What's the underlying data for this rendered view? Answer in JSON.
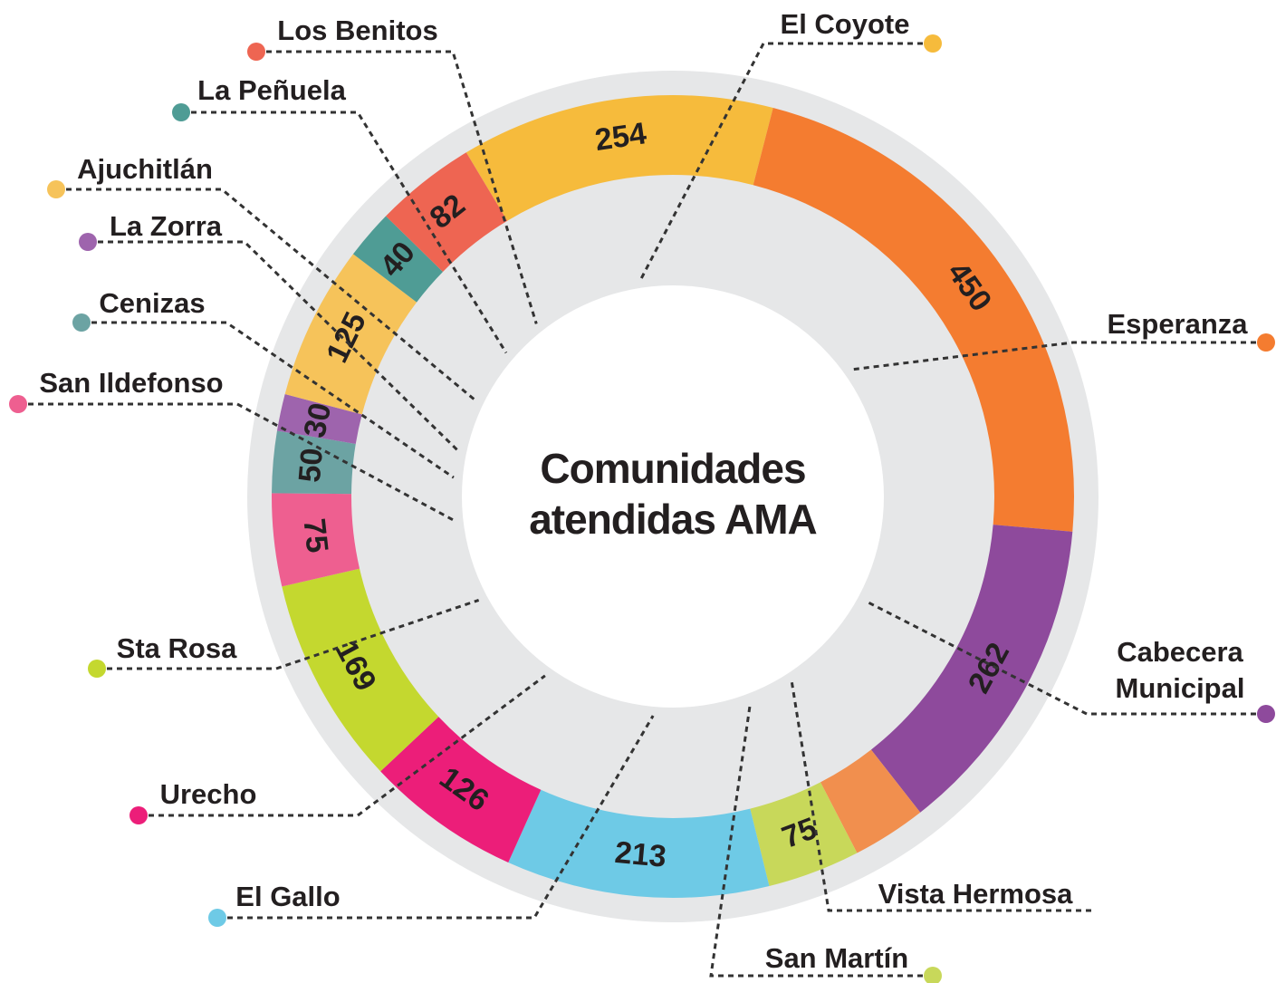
{
  "chart_data": {
    "type": "donut",
    "title": [
      "Comunidades",
      "atendidas AMA"
    ],
    "categories": [
      "El Coyote",
      "Esperanza",
      "Cabecera Municipal",
      "Vista Hermosa",
      "San Martín",
      "El Gallo",
      "Urecho",
      "Sta Rosa",
      "San Ildefonso",
      "Cenizas",
      "La Zorra",
      "Ajuchitlán",
      "La Peñuela",
      "Los Benitos"
    ],
    "values": [
      254,
      450,
      262,
      60,
      75,
      213,
      126,
      169,
      75,
      50,
      30,
      125,
      40,
      82
    ],
    "value_labels": [
      "254",
      "450",
      "262",
      null,
      "75",
      "213",
      "126",
      "169",
      "75",
      "50",
      "30",
      "125",
      "40",
      "82"
    ],
    "colors": [
      "#f6bb3c",
      "#f47c30",
      "#8e4a9c",
      "#f18f4e",
      "#c8d85a",
      "#6ecae6",
      "#ec1e79",
      "#c4d82f",
      "#ee5f90",
      "#6ca3a3",
      "#9e64ad",
      "#f6c35a",
      "#4f9c95",
      "#ee6552"
    ]
  }
}
